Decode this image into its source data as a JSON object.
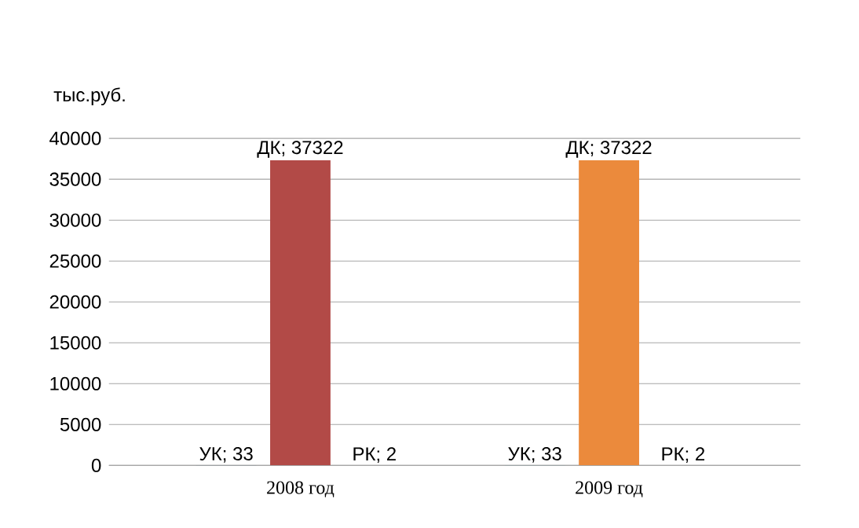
{
  "chart_data": {
    "type": "bar",
    "ylabel": "тыс.руб.",
    "categories": [
      "2008 год",
      "2009 год"
    ],
    "series": [
      {
        "colors": [
          "#2e5f8c",
          "#3c9bb3"
        ],
        "values": [
          33,
          33
        ],
        "value_labels": [
          "УК; 33",
          "УК; 33"
        ]
      },
      {
        "colors": [
          "#b24a47",
          "#eb8a3c"
        ],
        "values": [
          37322,
          37322
        ],
        "value_labels": [
          "ДК; 37322",
          "ДК; 37322"
        ]
      },
      {
        "colors": [
          "#7b9b3c",
          "#8193b5"
        ],
        "values": [
          2,
          2
        ],
        "value_labels": [
          "РК; 2",
          "РК; 2"
        ]
      }
    ],
    "ylim": [
      0,
      40000
    ],
    "yticks": [
      0,
      5000,
      10000,
      15000,
      20000,
      25000,
      30000,
      35000,
      40000
    ],
    "grid": "y"
  }
}
